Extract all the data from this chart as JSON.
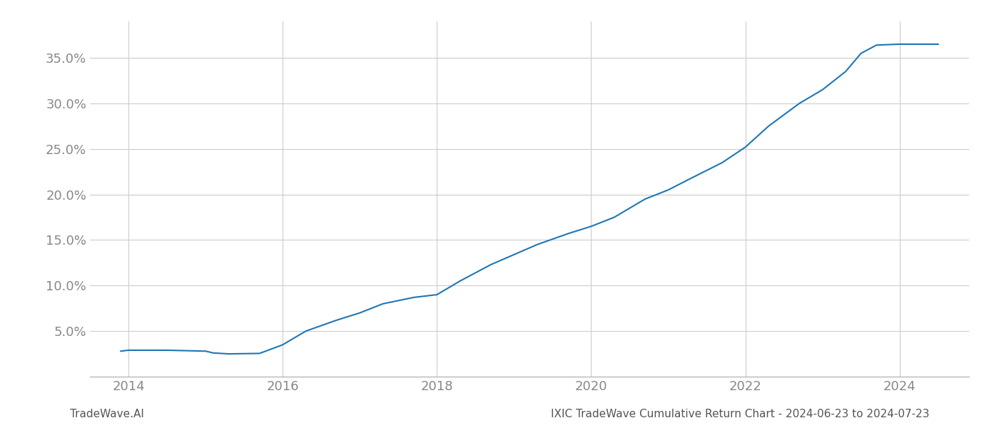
{
  "x_years": [
    2013.9,
    2014.0,
    2014.5,
    2015.0,
    2015.1,
    2015.3,
    2015.7,
    2016.0,
    2016.3,
    2016.7,
    2017.0,
    2017.3,
    2017.7,
    2018.0,
    2018.3,
    2018.7,
    2019.0,
    2019.3,
    2019.7,
    2020.0,
    2020.3,
    2020.7,
    2021.0,
    2021.3,
    2021.7,
    2022.0,
    2022.3,
    2022.7,
    2023.0,
    2023.3,
    2023.5,
    2023.7,
    2024.0,
    2024.3,
    2024.5
  ],
  "y_values": [
    2.8,
    2.9,
    2.9,
    2.8,
    2.6,
    2.5,
    2.55,
    3.5,
    5.0,
    6.2,
    7.0,
    8.0,
    8.7,
    9.0,
    10.5,
    12.3,
    13.4,
    14.5,
    15.7,
    16.5,
    17.5,
    19.5,
    20.5,
    21.8,
    23.5,
    25.2,
    27.5,
    30.0,
    31.5,
    33.5,
    35.5,
    36.4,
    36.5,
    36.5,
    36.5
  ],
  "line_color": "#1f77b4",
  "line_width": 1.5,
  "background_color": "#ffffff",
  "grid_color": "#cccccc",
  "title": "IXIC TradeWave Cumulative Return Chart - 2024-06-23 to 2024-07-23",
  "footer_left": "TradeWave.AI",
  "x_ticks": [
    2014,
    2016,
    2018,
    2020,
    2022,
    2024
  ],
  "y_ticks": [
    5.0,
    10.0,
    15.0,
    20.0,
    25.0,
    30.0,
    35.0
  ],
  "xlim": [
    2013.5,
    2024.9
  ],
  "ylim": [
    0.0,
    39.0
  ],
  "tick_color": "#888888",
  "footer_color": "#555555",
  "title_color": "#555555",
  "tick_fontsize": 13,
  "title_fontsize": 11,
  "footer_fontsize": 11
}
